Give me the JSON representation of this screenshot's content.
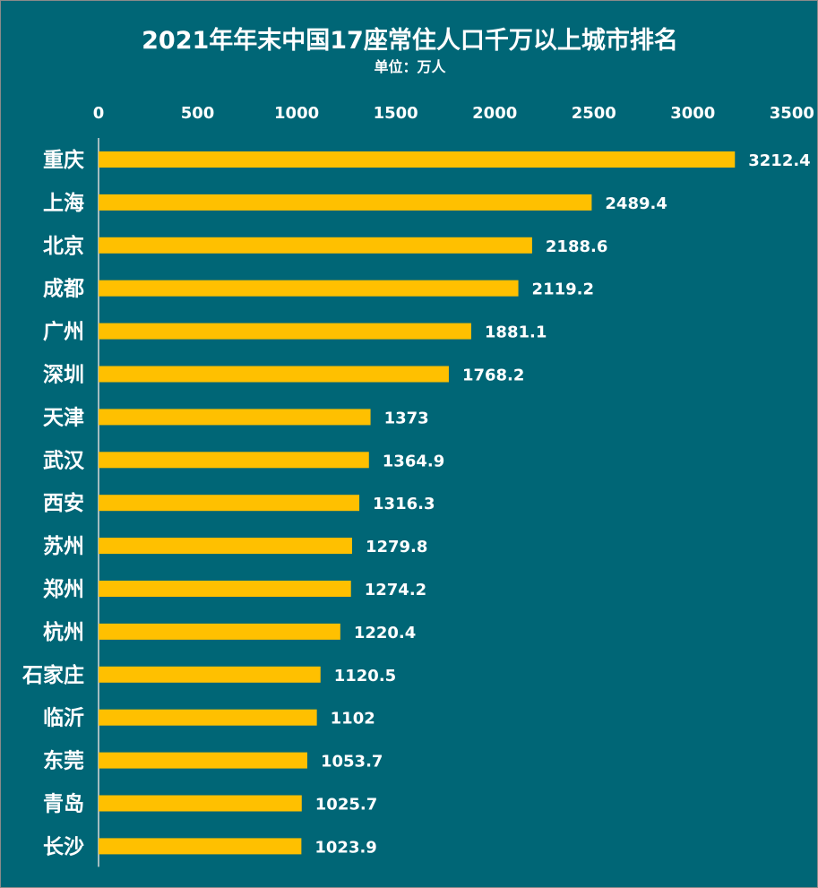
{
  "colors": {
    "background": "#006676",
    "bar": "#ffc000",
    "text": "#ffffff",
    "axis": "#d9d9d9"
  },
  "chart_data": {
    "type": "bar",
    "orientation": "horizontal",
    "title": "2021年年末中国17座常住人口千万以上城市排名",
    "subtitle": "单位：万人",
    "categories": [
      "重庆",
      "上海",
      "北京",
      "成都",
      "广州",
      "深圳",
      "天津",
      "武汉",
      "西安",
      "苏州",
      "郑州",
      "杭州",
      "石家庄",
      "临沂",
      "东莞",
      "青岛",
      "长沙"
    ],
    "values": [
      3212.4,
      2489.4,
      2188.6,
      2119.2,
      1881.1,
      1768.2,
      1373,
      1364.9,
      1316.3,
      1279.8,
      1274.2,
      1220.4,
      1120.5,
      1102,
      1053.7,
      1025.7,
      1023.9
    ],
    "value_labels": [
      "3212.4",
      "2489.4",
      "2188.6",
      "2119.2",
      "1881.1",
      "1768.2",
      "1373",
      "1364.9",
      "1316.3",
      "1279.8",
      "1274.2",
      "1220.4",
      "1120.5",
      "1102",
      "1053.7",
      "1025.7",
      "1023.9"
    ],
    "xticks": [
      0,
      500,
      1000,
      1500,
      2000,
      2500,
      3000,
      3500
    ],
    "xtick_labels": [
      "0",
      "500",
      "1000",
      "1500",
      "2000",
      "2500",
      "3000",
      "3500"
    ],
    "xlim": [
      0,
      3500
    ],
    "axis_position": "top",
    "grid": false,
    "legend": "none"
  }
}
